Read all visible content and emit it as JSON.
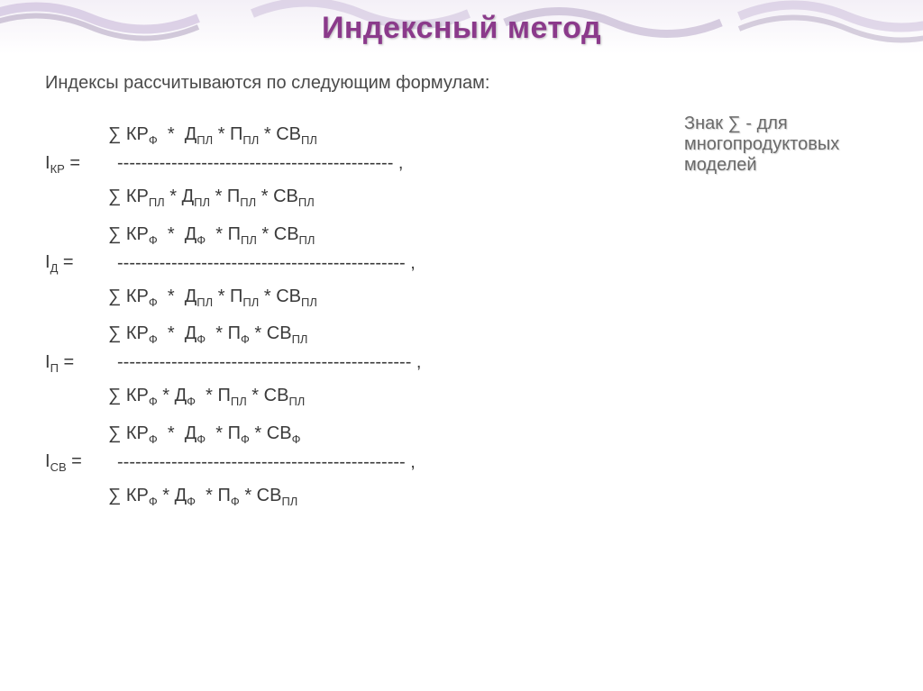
{
  "title": "Индексный метод",
  "intro": "Индексы рассчитываются по следующим формулам:",
  "note": "Знак ∑ - для многопродуктовых моделей",
  "formulas": [
    {
      "index_main": "I",
      "index_sub": "КР",
      "num": [
        [
          "∑ КР",
          "Ф"
        ],
        [
          "  *  Д",
          "ПЛ"
        ],
        [
          " * П",
          "ПЛ"
        ],
        [
          " * СВ",
          "ПЛ"
        ]
      ],
      "dashes": "---------------------------------------------- ,",
      "den": [
        [
          "∑ КР",
          "ПЛ"
        ],
        [
          " * Д",
          "ПЛ"
        ],
        [
          " * П",
          "ПЛ"
        ],
        [
          " * СВ",
          "ПЛ"
        ]
      ]
    },
    {
      "index_main": "I",
      "index_sub": "Д",
      "num": [
        [
          "∑ КР",
          "Ф"
        ],
        [
          "  *  Д",
          "Ф"
        ],
        [
          "  * П",
          "ПЛ"
        ],
        [
          " * СВ",
          "ПЛ"
        ]
      ],
      "dashes": "------------------------------------------------ ,",
      "den": [
        [
          "∑ КР",
          "Ф"
        ],
        [
          "  *  Д",
          "ПЛ"
        ],
        [
          " * П",
          "ПЛ"
        ],
        [
          " * СВ",
          "ПЛ"
        ]
      ]
    },
    {
      "index_main": "I",
      "index_sub": "П",
      "num": [
        [
          "∑ КР",
          "Ф"
        ],
        [
          "  *  Д",
          "Ф"
        ],
        [
          "  * П",
          "Ф"
        ],
        [
          " * СВ",
          "ПЛ"
        ]
      ],
      "dashes": "------------------------------------------------- ,",
      "den": [
        [
          "∑ КР",
          "Ф"
        ],
        [
          " * Д",
          "Ф"
        ],
        [
          "  * П",
          "ПЛ"
        ],
        [
          " * СВ",
          "ПЛ"
        ]
      ]
    },
    {
      "index_main": "I",
      "index_sub": "СВ",
      "num": [
        [
          "∑ КР",
          "Ф"
        ],
        [
          "  *  Д",
          "Ф"
        ],
        [
          "  * П",
          "Ф"
        ],
        [
          " * СВ",
          "Ф"
        ]
      ],
      "dashes": "------------------------------------------------ ,",
      "den": [
        [
          "∑ КР",
          "Ф"
        ],
        [
          " * Д",
          "Ф"
        ],
        [
          "  * П",
          "Ф"
        ],
        [
          " * СВ",
          "ПЛ"
        ]
      ]
    }
  ],
  "colors": {
    "title": "#8b3a8b",
    "body_text": "#3a3a3a",
    "note_text": "#6a6a6a",
    "bg": "#ffffff",
    "border_swirl": "#b8a8c8"
  }
}
